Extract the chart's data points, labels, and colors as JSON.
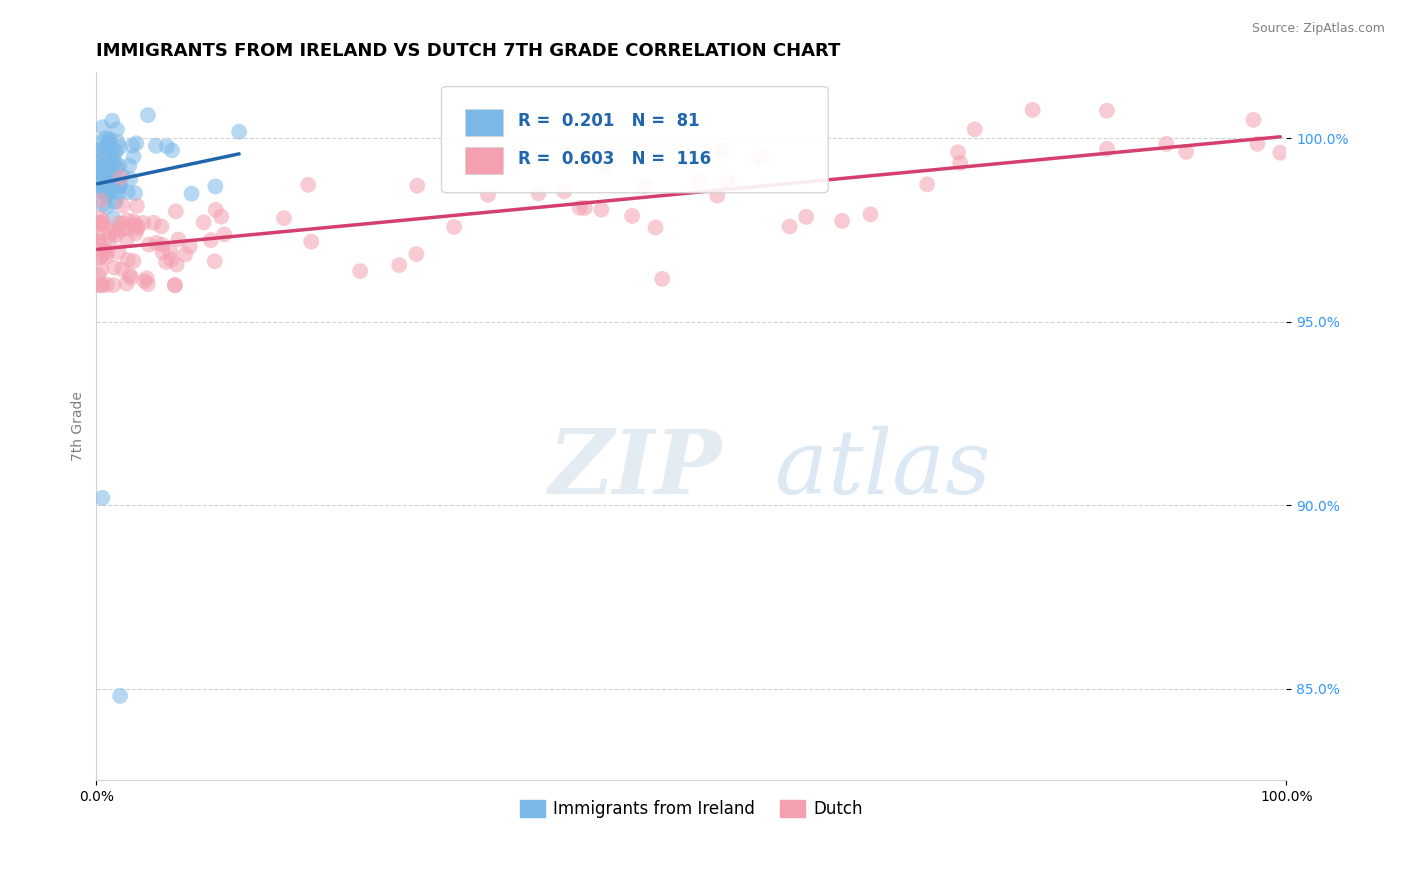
{
  "title": "IMMIGRANTS FROM IRELAND VS DUTCH 7TH GRADE CORRELATION CHART",
  "source_text": "Source: ZipAtlas.com",
  "ylabel": "7th Grade",
  "watermark": "ZIPatlas",
  "xlim": [
    0.0,
    100.0
  ],
  "ylim": [
    82.5,
    101.8
  ],
  "x_ticks": [
    0.0,
    100.0
  ],
  "x_tick_labels": [
    "0.0%",
    "100.0%"
  ],
  "y_ticks": [
    85.0,
    90.0,
    95.0,
    100.0
  ],
  "y_tick_labels": [
    "85.0%",
    "90.0%",
    "95.0%",
    "100.0%"
  ],
  "legend_entries": [
    {
      "label": "Immigrants from Ireland",
      "color": "#7ab8e8",
      "R": 0.201,
      "N": 81
    },
    {
      "label": "Dutch",
      "color": "#f4a0b0",
      "R": 0.603,
      "N": 116
    }
  ],
  "blue_color": "#7ab8e8",
  "pink_color": "#f4a0b0",
  "blue_line_color": "#2166ac",
  "pink_line_color": "#d43f6e",
  "title_fontsize": 13,
  "axis_label_fontsize": 10,
  "tick_fontsize": 10,
  "legend_fontsize": 12,
  "scatter_alpha": 0.55,
  "scatter_size": 130
}
